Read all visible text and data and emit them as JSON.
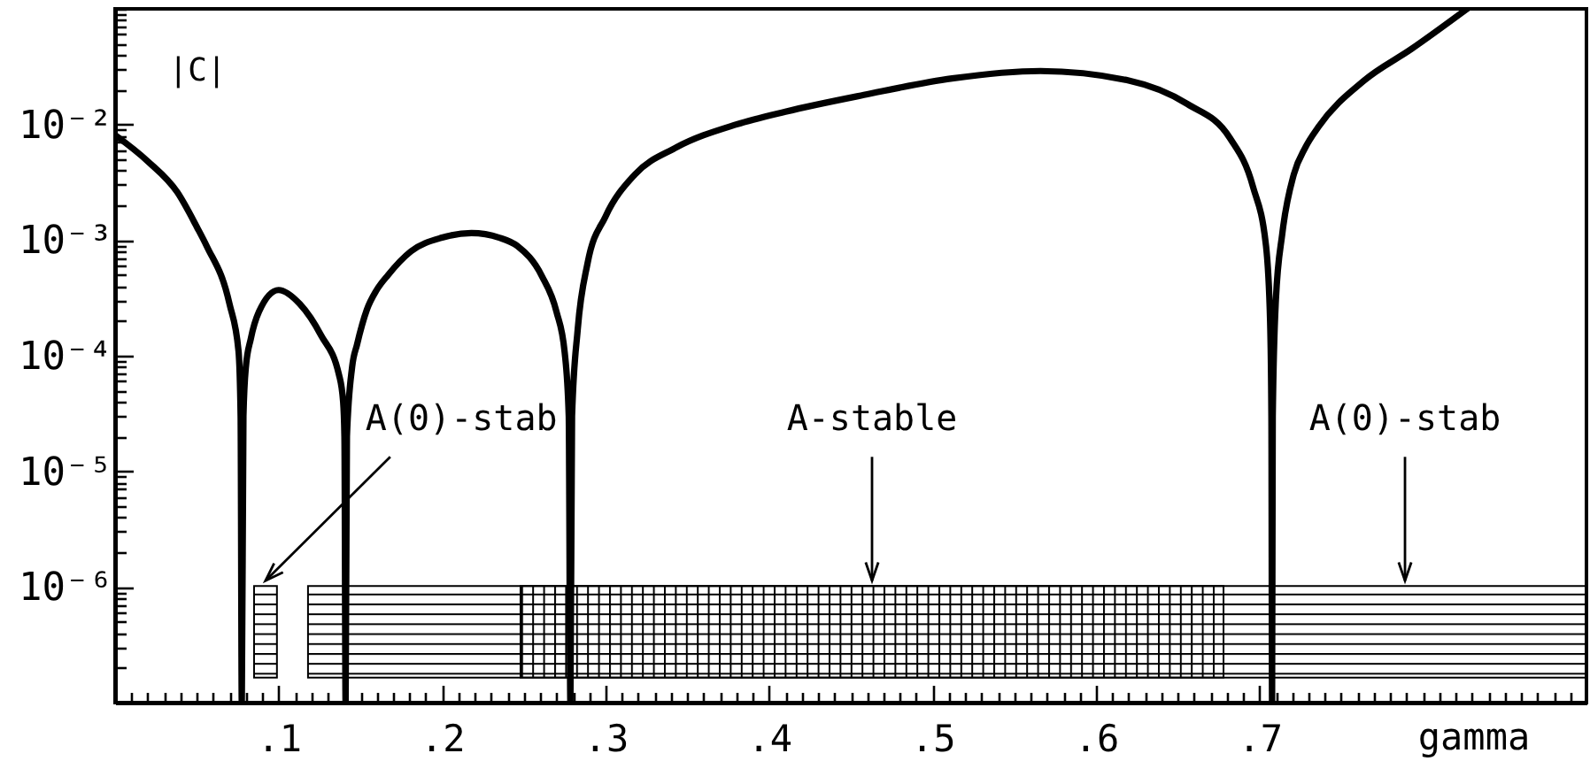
{
  "chart_data": {
    "type": "line",
    "xlabel": "gamma",
    "ylabel": "|C|",
    "log": "y",
    "xlim": [
      0,
      0.9
    ],
    "ylim": [
      1e-07,
      0.1
    ],
    "xticks": [
      {
        "value": 0.01,
        "label": null
      },
      {
        "value": 0.02,
        "label": null
      },
      {
        "value": 0.03,
        "label": null
      },
      {
        "value": 0.04,
        "label": null
      },
      {
        "value": 0.05,
        "label": null
      },
      {
        "value": 0.06,
        "label": null
      },
      {
        "value": 0.07,
        "label": null
      },
      {
        "value": 0.08,
        "label": null
      },
      {
        "value": 0.09,
        "label": null
      },
      {
        "value": 0.1,
        "label": ".1"
      },
      {
        "value": 0.11,
        "label": null
      },
      {
        "value": 0.12,
        "label": null
      },
      {
        "value": 0.13,
        "label": null
      },
      {
        "value": 0.14,
        "label": null
      },
      {
        "value": 0.15,
        "label": null
      },
      {
        "value": 0.16,
        "label": null
      },
      {
        "value": 0.17,
        "label": null
      },
      {
        "value": 0.18,
        "label": null
      },
      {
        "value": 0.19,
        "label": null
      },
      {
        "value": 0.2,
        "label": ".2"
      },
      {
        "value": 0.21,
        "label": null
      },
      {
        "value": 0.22,
        "label": null
      },
      {
        "value": 0.23,
        "label": null
      },
      {
        "value": 0.24,
        "label": null
      },
      {
        "value": 0.25,
        "label": null
      },
      {
        "value": 0.26,
        "label": null
      },
      {
        "value": 0.27,
        "label": null
      },
      {
        "value": 0.28,
        "label": null
      },
      {
        "value": 0.29,
        "label": null
      },
      {
        "value": 0.3,
        "label": ".3"
      },
      {
        "value": 0.31,
        "label": null
      },
      {
        "value": 0.32,
        "label": null
      },
      {
        "value": 0.33,
        "label": null
      },
      {
        "value": 0.34,
        "label": null
      },
      {
        "value": 0.35,
        "label": null
      },
      {
        "value": 0.36,
        "label": null
      },
      {
        "value": 0.37,
        "label": null
      },
      {
        "value": 0.38,
        "label": null
      },
      {
        "value": 0.39,
        "label": null
      },
      {
        "value": 0.4,
        "label": ".4"
      },
      {
        "value": 0.41,
        "label": null
      },
      {
        "value": 0.42,
        "label": null
      },
      {
        "value": 0.43,
        "label": null
      },
      {
        "value": 0.44,
        "label": null
      },
      {
        "value": 0.45,
        "label": null
      },
      {
        "value": 0.46,
        "label": null
      },
      {
        "value": 0.47,
        "label": null
      },
      {
        "value": 0.48,
        "label": null
      },
      {
        "value": 0.49,
        "label": null
      },
      {
        "value": 0.5,
        "label": ".5"
      },
      {
        "value": 0.51,
        "label": null
      },
      {
        "value": 0.52,
        "label": null
      },
      {
        "value": 0.53,
        "label": null
      },
      {
        "value": 0.54,
        "label": null
      },
      {
        "value": 0.55,
        "label": null
      },
      {
        "value": 0.56,
        "label": null
      },
      {
        "value": 0.57,
        "label": null
      },
      {
        "value": 0.58,
        "label": null
      },
      {
        "value": 0.59,
        "label": null
      },
      {
        "value": 0.6,
        "label": ".6"
      },
      {
        "value": 0.61,
        "label": null
      },
      {
        "value": 0.62,
        "label": null
      },
      {
        "value": 0.63,
        "label": null
      },
      {
        "value": 0.64,
        "label": null
      },
      {
        "value": 0.65,
        "label": null
      },
      {
        "value": 0.66,
        "label": null
      },
      {
        "value": 0.67,
        "label": null
      },
      {
        "value": 0.68,
        "label": null
      },
      {
        "value": 0.69,
        "label": null
      },
      {
        "value": 0.7,
        "label": ".7"
      },
      {
        "value": 0.71,
        "label": null
      },
      {
        "value": 0.72,
        "label": null
      },
      {
        "value": 0.73,
        "label": null
      },
      {
        "value": 0.74,
        "label": null
      },
      {
        "value": 0.75,
        "label": null
      },
      {
        "value": 0.76,
        "label": null
      },
      {
        "value": 0.77,
        "label": null
      },
      {
        "value": 0.78,
        "label": null
      },
      {
        "value": 0.79,
        "label": null
      },
      {
        "value": 0.8,
        "label": null
      },
      {
        "value": 0.81,
        "label": null
      },
      {
        "value": 0.82,
        "label": null
      },
      {
        "value": 0.83,
        "label": null
      },
      {
        "value": 0.84,
        "label": null
      },
      {
        "value": 0.85,
        "label": null
      },
      {
        "value": 0.86,
        "label": null
      },
      {
        "value": 0.87,
        "label": null
      },
      {
        "value": 0.88,
        "label": null
      },
      {
        "value": 0.89,
        "label": null
      }
    ],
    "yticks": [
      {
        "value": 1e-07,
        "label": null
      },
      {
        "value": 2e-07,
        "label": null
      },
      {
        "value": 3e-07,
        "label": null
      },
      {
        "value": 4e-07,
        "label": null
      },
      {
        "value": 5e-07,
        "label": null
      },
      {
        "value": 6e-07,
        "label": null
      },
      {
        "value": 7e-07,
        "label": null
      },
      {
        "value": 8e-07,
        "label": null
      },
      {
        "value": 9e-07,
        "label": null
      },
      {
        "value": 1e-06,
        "label": "10⁻⁶"
      },
      {
        "value": 2e-06,
        "label": null
      },
      {
        "value": 3e-06,
        "label": null
      },
      {
        "value": 4e-06,
        "label": null
      },
      {
        "value": 5e-06,
        "label": null
      },
      {
        "value": 6e-06,
        "label": null
      },
      {
        "value": 7e-06,
        "label": null
      },
      {
        "value": 8e-06,
        "label": null
      },
      {
        "value": 9e-06,
        "label": null
      },
      {
        "value": 1e-05,
        "label": "10⁻⁵"
      },
      {
        "value": 2e-05,
        "label": null
      },
      {
        "value": 3e-05,
        "label": null
      },
      {
        "value": 4e-05,
        "label": null
      },
      {
        "value": 5e-05,
        "label": null
      },
      {
        "value": 6e-05,
        "label": null
      },
      {
        "value": 7e-05,
        "label": null
      },
      {
        "value": 8e-05,
        "label": null
      },
      {
        "value": 9e-05,
        "label": null
      },
      {
        "value": 0.0001,
        "label": "10⁻⁴"
      },
      {
        "value": 0.0002,
        "label": null
      },
      {
        "value": 0.0003,
        "label": null
      },
      {
        "value": 0.0004,
        "label": null
      },
      {
        "value": 0.0005,
        "label": null
      },
      {
        "value": 0.0006,
        "label": null
      },
      {
        "value": 0.0007,
        "label": null
      },
      {
        "value": 0.0008,
        "label": null
      },
      {
        "value": 0.0009,
        "label": null
      },
      {
        "value": 0.001,
        "label": "10⁻³"
      },
      {
        "value": 0.002,
        "label": null
      },
      {
        "value": 0.003,
        "label": null
      },
      {
        "value": 0.004,
        "label": null
      },
      {
        "value": 0.005,
        "label": null
      },
      {
        "value": 0.006,
        "label": null
      },
      {
        "value": 0.007,
        "label": null
      },
      {
        "value": 0.008,
        "label": null
      },
      {
        "value": 0.009,
        "label": null
      },
      {
        "value": 0.01,
        "label": "10⁻²"
      },
      {
        "value": 0.02,
        "label": null
      },
      {
        "value": 0.03,
        "label": null
      },
      {
        "value": 0.04,
        "label": null
      },
      {
        "value": 0.05,
        "label": null
      },
      {
        "value": 0.06,
        "label": null
      },
      {
        "value": 0.07,
        "label": null
      },
      {
        "value": 0.08,
        "label": null
      },
      {
        "value": 0.09,
        "label": null
      },
      {
        "value": 0.1,
        "label": null
      }
    ],
    "x": [
      0,
      0.02,
      0.038,
      0.05,
      0.056,
      0.07,
      0.0755,
      0.0768,
      0.0775,
      0.0785,
      0.08,
      0.083,
      0.088,
      0.1,
      0.113,
      0.126,
      0.137,
      0.1395,
      0.1403,
      0.141,
      0.1418,
      0.145,
      0.148,
      0.154,
      0.16,
      0.167,
      0.181,
      0.2,
      0.218,
      0.235,
      0.246,
      0.261,
      0.27,
      0.275,
      0.2775,
      0.2785,
      0.2795,
      0.283,
      0.289,
      0.3,
      0.318,
      0.343,
      0.38,
      0.41,
      0.458,
      0.512,
      0.566,
      0.62,
      0.656,
      0.682,
      0.696,
      0.704,
      0.7065,
      0.7073,
      0.7077,
      0.7081,
      0.71,
      0.714,
      0.721,
      0.728,
      0.736,
      0.764,
      0.793,
      0.827
    ],
    "series": [
      {
        "color": "#000000",
        "values": [
          0.0081,
          0.0048,
          0.0026,
          0.0013,
          0.00089,
          0.00028,
          0.00011,
          3e-05,
          1e-07,
          3e-05,
          8e-05,
          0.00014,
          0.00024,
          0.00037,
          0.00028,
          0.00015,
          6.8e-05,
          4e-05,
          2e-05,
          1e-07,
          2e-05,
          8e-05,
          0.000125,
          0.00025,
          0.00037,
          0.0005,
          0.0008,
          0.00105,
          0.00115,
          0.00105,
          0.00089,
          0.00049,
          0.00024,
          0.000107,
          3e-05,
          1e-07,
          3e-05,
          0.00017,
          0.00063,
          0.0016,
          0.0037,
          0.0063,
          0.01,
          0.0129,
          0.018,
          0.025,
          0.029,
          0.024,
          0.015,
          0.0076,
          0.0029,
          0.00089,
          0.0002,
          3e-05,
          1e-07,
          3e-05,
          0.0003,
          0.00115,
          0.0037,
          0.0063,
          0.0095,
          0.024,
          0.045,
          0.1
        ]
      }
    ],
    "bands": [
      {
        "axis": "x",
        "from": 0.085,
        "to": 0.099,
        "label": "A(0)-stab"
      },
      {
        "axis": "x",
        "from": 0.118,
        "to": 0.9,
        "label": "A(0)-stab"
      },
      {
        "axis": "x",
        "from": 0.248,
        "to": 0.678,
        "label": "A-stable"
      }
    ]
  }
}
